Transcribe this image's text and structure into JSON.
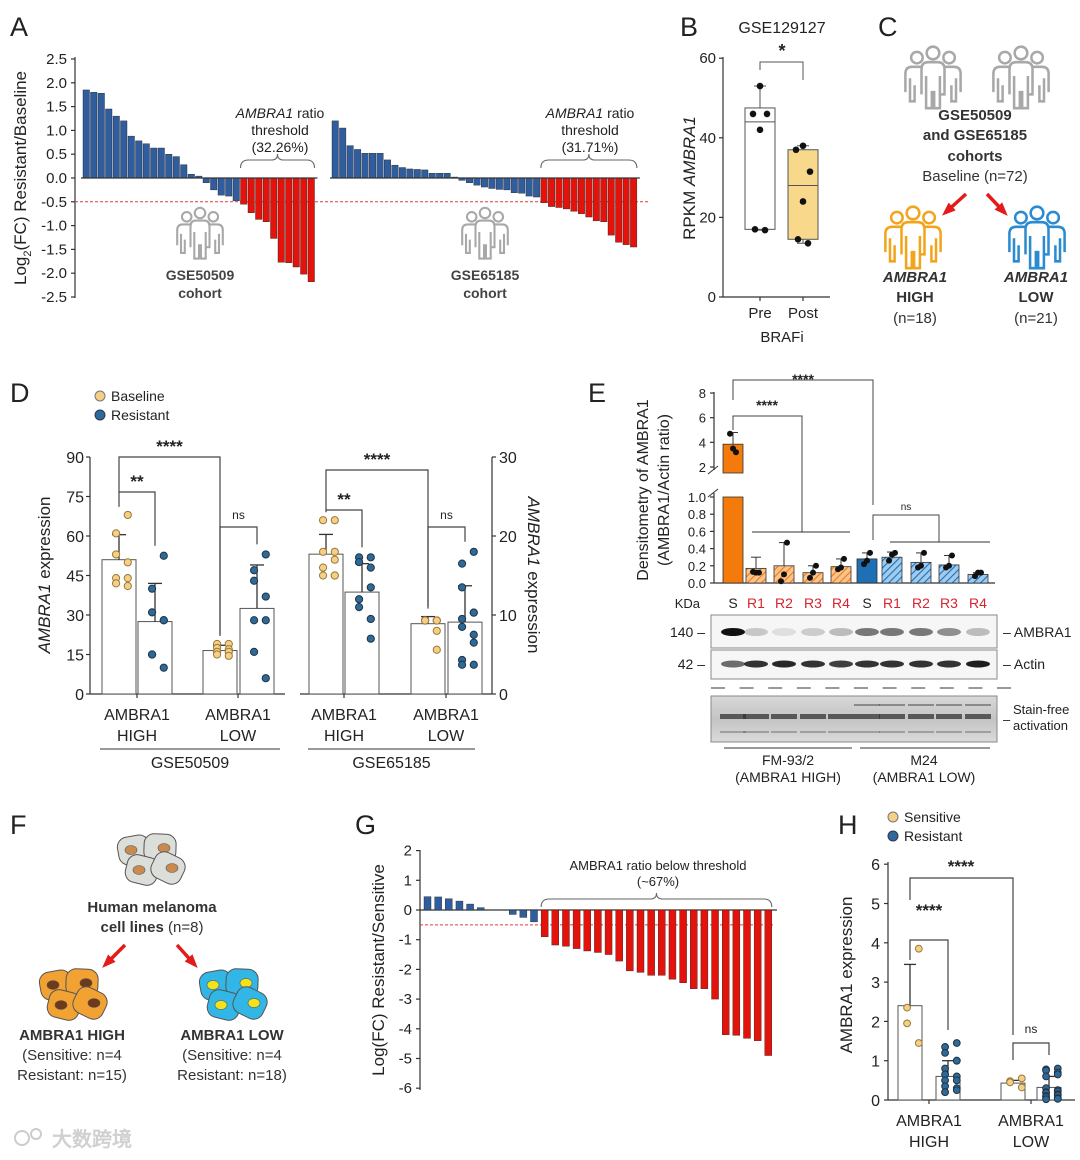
{
  "panel_labels": {
    "A": "A",
    "B": "B",
    "C": "C",
    "D": "D",
    "E": "E",
    "F": "F",
    "G": "G",
    "H": "H"
  },
  "colors": {
    "blue_bar": "#2f5d9e",
    "red_bar": "#e3120b",
    "threshold": "#e33b3b",
    "baseline_dot": "#f5cf85",
    "resistant_dot": "#2e6a97",
    "orange": "#f47a0c",
    "e_blue": "#1f6fb5",
    "post_box": "#f8d98c",
    "gray_icon": "#a8a8a8",
    "high_icon": "#f2a51c",
    "low_icon": "#2a8bd0"
  },
  "watermark": "大数跨境",
  "chart_data": [
    {
      "panel": "A",
      "type": "bar",
      "ylabel_parts": [
        "Log",
        "2",
        "(FC) Resistant/Baseline"
      ],
      "ylim": [
        -2.5,
        2.5
      ],
      "threshold": -0.5,
      "yticks": [
        "2.5",
        "2.0",
        "1.5",
        "1.0",
        "0.5",
        "0.0",
        "-0.5",
        "-1.0",
        "-1.5",
        "-2.0",
        "-2.5"
      ],
      "series": [
        {
          "cohort": "GSE50509",
          "cohort_sub": "cohort",
          "ann_gene": "AMBRA1",
          "ann_rest": " ratio",
          "ann_line2": "threshold",
          "ann_line3": "(32.26%)",
          "values": [
            1.85,
            1.8,
            1.78,
            1.45,
            1.3,
            1.2,
            0.88,
            0.78,
            0.72,
            0.63,
            0.63,
            0.5,
            0.45,
            0.28,
            0.08,
            0.04,
            -0.1,
            -0.25,
            -0.36,
            -0.38,
            -0.48,
            -0.55,
            -0.73,
            -0.87,
            -0.92,
            -1.27,
            -1.77,
            -1.78,
            -1.87,
            -2.02,
            -2.18
          ]
        },
        {
          "cohort": "GSE65185",
          "cohort_sub": "cohort",
          "ann_gene": "AMBRA1",
          "ann_rest": " ratio",
          "ann_line2": "threshold",
          "ann_line3": "(31.71%)",
          "values": [
            1.2,
            1.05,
            0.68,
            0.6,
            0.52,
            0.52,
            0.52,
            0.38,
            0.27,
            0.22,
            0.19,
            0.18,
            0.17,
            0.1,
            0.1,
            0.1,
            0.02,
            -0.05,
            -0.1,
            -0.15,
            -0.19,
            -0.22,
            -0.24,
            -0.25,
            -0.31,
            -0.32,
            -0.38,
            -0.4,
            -0.52,
            -0.6,
            -0.62,
            -0.65,
            -0.7,
            -0.75,
            -0.82,
            -0.9,
            -0.92,
            -1.2,
            -1.35,
            -1.4,
            -1.45
          ]
        }
      ]
    },
    {
      "panel": "B",
      "type": "box",
      "title": "GSE129127",
      "ylabel_pre": "RPKM ",
      "ylabel_gene": "AMBRA1",
      "ylim": [
        0,
        60
      ],
      "yticks": [
        "0",
        "20",
        "40",
        "60"
      ],
      "xlabel": "BRAFi",
      "significance": "*",
      "groups": [
        {
          "label": "Pre",
          "q1": 17,
          "median": 44,
          "q3": 47.5,
          "min": 16.8,
          "max": 53,
          "points": [
            53,
            46,
            46,
            42,
            17,
            16.8
          ]
        },
        {
          "label": "Post",
          "q1": 14.5,
          "median": 28,
          "q3": 37,
          "min": 13.5,
          "max": 38,
          "points": [
            38,
            37,
            31.5,
            24,
            14.5,
            13.5
          ]
        }
      ]
    },
    {
      "panel": "D",
      "type": "bar",
      "legend": [
        "Baseline",
        "Resistant"
      ],
      "ylabel_gene": "AMBRA1",
      "ylabel_rest": " expression",
      "subplots": [
        {
          "dataset": "GSE50509",
          "ylim": [
            0,
            90
          ],
          "yticks": [
            "0",
            "15",
            "30",
            "45",
            "60",
            "75",
            "90"
          ],
          "group_labels": [
            [
              "AMBRA1",
              "HIGH"
            ],
            [
              "AMBRA1",
              "LOW"
            ]
          ],
          "bars": [
            {
              "group": "HIGH",
              "condition": "Baseline",
              "mean": 51,
              "error_upper": 60.5,
              "points": [
                68,
                61,
                53,
                50,
                44,
                44,
                42,
                41
              ]
            },
            {
              "group": "HIGH",
              "condition": "Resistant",
              "mean": 27.5,
              "error_upper": 42,
              "points": [
                52.5,
                40,
                31,
                28,
                28,
                15,
                15,
                10
              ]
            },
            {
              "group": "LOW",
              "condition": "Baseline",
              "mean": 16.5,
              "error_upper": 18.5,
              "points": [
                19,
                19,
                17.5,
                17,
                16,
                16,
                15,
                14.5
              ]
            },
            {
              "group": "LOW",
              "condition": "Resistant",
              "mean": 32.5,
              "error_upper": 49,
              "points": [
                53,
                47,
                43,
                37,
                28,
                28,
                16,
                6
              ]
            }
          ],
          "significance": [
            "**",
            "****",
            "ns"
          ]
        },
        {
          "dataset": "GSE65185",
          "ylim": [
            0,
            30
          ],
          "yticks": [
            "0",
            "10",
            "20",
            "30"
          ],
          "group_labels": [
            [
              "AMBRA1",
              "HIGH"
            ],
            [
              "AMBRA1",
              "LOW"
            ]
          ],
          "bars": [
            {
              "group": "HIGH",
              "condition": "Baseline",
              "mean": 17.7,
              "error_upper": 20.2,
              "points": [
                22,
                22,
                18,
                18,
                17,
                16,
                15,
                15,
                15
              ]
            },
            {
              "group": "HIGH",
              "condition": "Resistant",
              "mean": 12.9,
              "error_upper": 16.5,
              "points": [
                17.3,
                17.3,
                16.7,
                16,
                13.5,
                12,
                11,
                9.5,
                7
              ]
            },
            {
              "group": "LOW",
              "condition": "Baseline",
              "mean": 8.9,
              "error_upper": 9.8,
              "points": [
                9.3,
                9.3,
                9.3,
                9.3,
                9.3,
                9.3,
                9.3,
                8,
                5.6
              ]
            },
            {
              "group": "LOW",
              "condition": "Resistant",
              "mean": 9.1,
              "error_upper": 13.7,
              "points": [
                18,
                16.5,
                13.5,
                10.3,
                10.3,
                9.5,
                8.5,
                7.5,
                6.5,
                4.3,
                3.7,
                3.7
              ]
            }
          ],
          "significance": [
            "**",
            "****",
            "ns"
          ]
        }
      ]
    },
    {
      "panel": "E",
      "type": "bar",
      "ylabel_line1": "Densitometry of AMBRA1",
      "ylabel_line2": "(AMBRA1/Actin ratio)",
      "yticks_upper": [
        "2",
        "4",
        "6",
        "8"
      ],
      "yticks_lower": [
        "0.0",
        "0.2",
        "0.4",
        "0.6",
        "0.8",
        "1.0"
      ],
      "kda_label": "KDa",
      "categories": [
        "S",
        "R1",
        "R2",
        "R3",
        "R4",
        "S",
        "R1",
        "R2",
        "R3",
        "R4"
      ],
      "values": [
        3.85,
        0.17,
        0.2,
        0.12,
        0.19,
        0.28,
        0.3,
        0.24,
        0.21,
        0.1
      ],
      "error_upper": [
        4.8,
        0.3,
        0.47,
        0.2,
        0.28,
        0.35,
        0.36,
        0.35,
        0.32,
        0.12
      ],
      "points": [
        [
          4.7,
          3.5,
          3.2
        ],
        [
          0.13,
          0.12,
          0.12
        ],
        [
          0.02,
          0.1,
          0.47
        ],
        [
          0.06,
          0.12,
          0.2
        ],
        [
          0.16,
          0.18,
          0.28
        ],
        [
          0.22,
          0.26,
          0.35
        ],
        [
          0.26,
          0.33,
          0.35
        ],
        [
          0.18,
          0.2,
          0.35
        ],
        [
          0.18,
          0.2,
          0.32
        ],
        [
          0.08,
          0.12,
          0.12
        ]
      ],
      "significance": [
        "****",
        "****",
        "ns"
      ],
      "cell_lines": [
        {
          "name": "FM-93/2",
          "subtitle": "(AMBRA1 HIGH)"
        },
        {
          "name": "M24",
          "subtitle": "(AMBRA1 LOW)"
        }
      ],
      "blot": {
        "rows": [
          {
            "marker": "140 –",
            "label": "– AMBRA1"
          },
          {
            "marker": "42 –",
            "label": "– Actin"
          }
        ],
        "stain_label_1": "Stain-free",
        "stain_label_2": "activation",
        "stain_dash": "–",
        "ambra1_band_intensity": [
          1.0,
          0.2,
          0.1,
          0.18,
          0.25,
          0.55,
          0.55,
          0.55,
          0.45,
          0.25
        ],
        "actin_band_intensity": [
          0.6,
          0.85,
          0.9,
          0.85,
          0.8,
          0.85,
          0.85,
          0.85,
          0.85,
          0.95
        ]
      }
    },
    {
      "panel": "G",
      "type": "bar",
      "ylabel": "Log(FC) Resistant/Sensitive",
      "ylim": [
        -6,
        2
      ],
      "yticks": [
        "2",
        "1",
        "0",
        "-1",
        "-2",
        "-3",
        "-4",
        "-5",
        "-6"
      ],
      "threshold": -0.5,
      "annotation_line1": "AMBRA1 ratio below threshold",
      "annotation_line2": "(~67%)",
      "values": [
        0.45,
        0.44,
        0.38,
        0.3,
        0.2,
        0.08,
        0,
        0,
        -0.15,
        -0.25,
        -0.4,
        -0.9,
        -1.18,
        -1.22,
        -1.3,
        -1.38,
        -1.43,
        -1.5,
        -1.72,
        -2.05,
        -2.1,
        -2.2,
        -2.2,
        -2.33,
        -2.45,
        -2.65,
        -2.65,
        -3.0,
        -4.2,
        -4.22,
        -4.32,
        -4.4,
        -4.9
      ]
    },
    {
      "panel": "H",
      "type": "bar",
      "legend": [
        "Sensitive",
        "Resistant"
      ],
      "ylabel": "AMBRA1 expression",
      "ylim": [
        0,
        6
      ],
      "yticks": [
        "0",
        "1",
        "2",
        "3",
        "4",
        "5",
        "6"
      ],
      "group_labels": [
        [
          "AMBRA1",
          "HIGH"
        ],
        [
          "AMBRA1",
          "LOW"
        ]
      ],
      "bars": [
        {
          "group": "HIGH",
          "condition": "Sensitive",
          "mean": 2.4,
          "error_upper": 3.45,
          "points": [
            3.85,
            2.35,
            1.95,
            1.45
          ]
        },
        {
          "group": "HIGH",
          "condition": "Resistant",
          "mean": 0.6,
          "error_upper": 1.0,
          "points": [
            1.45,
            1.35,
            1.2,
            1.0,
            1.0,
            0.8,
            0.65,
            0.6,
            0.5,
            0.5,
            0.35,
            0.3,
            0.25,
            0.2,
            0.2
          ]
        },
        {
          "group": "LOW",
          "condition": "Sensitive",
          "mean": 0.43,
          "error_upper": 0.5,
          "points": [
            0.55,
            0.48,
            0.45,
            0.32
          ]
        },
        {
          "group": "LOW",
          "condition": "Resistant",
          "mean": 0.32,
          "error_upper": 0.6,
          "points": [
            0.8,
            0.78,
            0.75,
            0.7,
            0.65,
            0.6,
            0.3,
            0.25,
            0.22,
            0.2,
            0.18,
            0.15,
            0.12,
            0.1,
            0.08,
            0.05,
            0.03,
            0.02
          ]
        }
      ],
      "significance": [
        "****",
        "****",
        "ns"
      ]
    }
  ],
  "panel_C": {
    "cohorts_line1": "GSE50509",
    "cohorts_line2": "and GSE65185",
    "cohorts_line3": "cohorts",
    "baseline": "Baseline (n=72)",
    "high": {
      "gene": "AMBRA1",
      "level": "HIGH",
      "n": "(n=18)"
    },
    "low": {
      "gene": "AMBRA1",
      "level": "LOW",
      "n": "(n=21)"
    }
  },
  "panel_F": {
    "title_bold": "Human melanoma",
    "title_line2_bold": "cell lines",
    "title_n": " (n=8)",
    "high": {
      "title": "AMBRA1 HIGH",
      "line1": "(Sensitive: n=4",
      "line2": "Resistant: n=15)"
    },
    "low": {
      "title": "AMBRA1 LOW",
      "line1": "(Sensitive: n=4",
      "line2": "Resistant: n=18)"
    }
  }
}
